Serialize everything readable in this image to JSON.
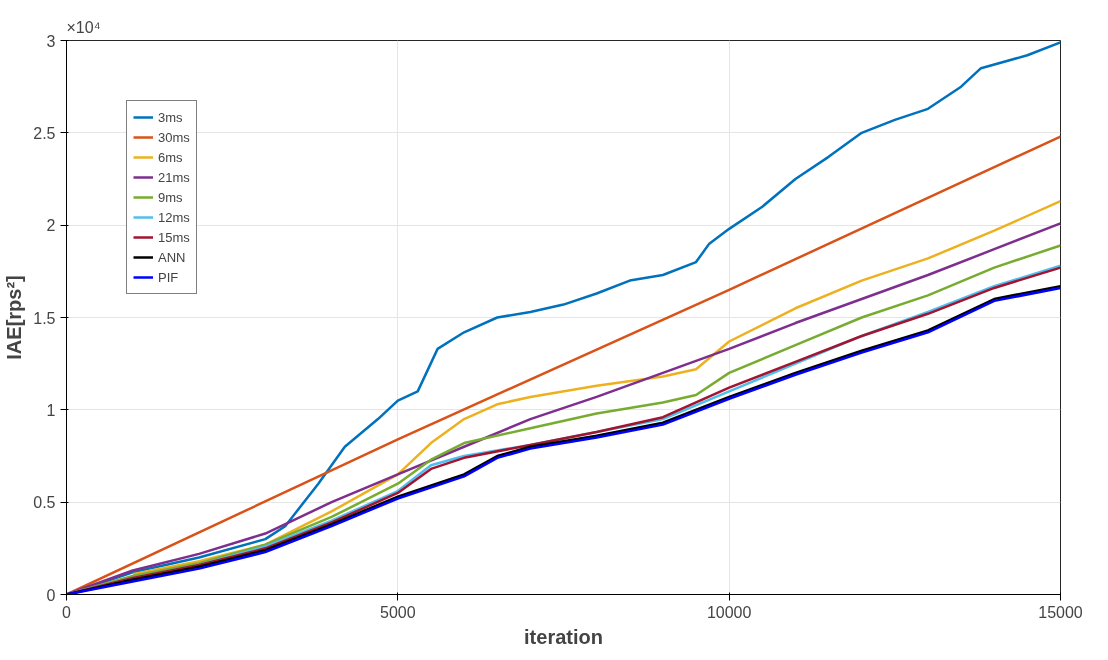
{
  "chart_data": {
    "type": "line",
    "xlabel": "iteration",
    "ylabel": "IAE[rps²]",
    "annotations": [
      "×10⁴"
    ],
    "xlim": [
      0,
      15000
    ],
    "ylim": [
      0,
      3
    ],
    "xticks": [
      0,
      5000,
      10000,
      15000
    ],
    "yticks": [
      0,
      0.5,
      1,
      1.5,
      2,
      2.5,
      3
    ],
    "grid": true,
    "legend": "top left",
    "series": [
      {
        "name": "3ms",
        "color": "#0072bd",
        "x": [
          0,
          1000,
          2000,
          3000,
          3300,
          3800,
          4200,
          4700,
          5000,
          5300,
          5600,
          6000,
          6500,
          7000,
          7500,
          8000,
          8500,
          9000,
          9500,
          9700,
          10000,
          10500,
          11000,
          11500,
          12000,
          12500,
          13000,
          13500,
          13800,
          14500,
          15000
        ],
        "values": [
          0,
          0.12,
          0.2,
          0.3,
          0.37,
          0.6,
          0.8,
          0.95,
          1.05,
          1.1,
          1.33,
          1.42,
          1.5,
          1.53,
          1.57,
          1.63,
          1.7,
          1.73,
          1.8,
          1.9,
          1.98,
          2.1,
          2.25,
          2.37,
          2.5,
          2.57,
          2.63,
          2.75,
          2.85,
          2.92,
          2.99
        ]
      },
      {
        "name": "30ms",
        "color": "#d95319",
        "x": [
          0,
          5000,
          10000,
          15000
        ],
        "values": [
          0,
          0.84,
          1.65,
          2.48
        ]
      },
      {
        "name": "6ms",
        "color": "#edb120",
        "x": [
          1000,
          2000,
          3000,
          4000,
          5000,
          5500,
          6000,
          6500,
          7000,
          8000,
          9000,
          9500,
          10000,
          11000,
          12000,
          13000,
          14000,
          15000
        ],
        "values": [
          0.11,
          0.18,
          0.27,
          0.45,
          0.65,
          0.82,
          0.95,
          1.03,
          1.07,
          1.13,
          1.18,
          1.22,
          1.37,
          1.55,
          1.7,
          1.82,
          1.97,
          2.13
        ]
      },
      {
        "name": "21ms",
        "color": "#7e2f8e",
        "x": [
          0,
          1000,
          2000,
          3000,
          4000,
          5000,
          6000,
          7000,
          8000,
          9000,
          10000,
          11000,
          12000,
          13000,
          14000,
          15000
        ],
        "values": [
          0,
          0.13,
          0.22,
          0.33,
          0.5,
          0.65,
          0.8,
          0.95,
          1.07,
          1.2,
          1.33,
          1.47,
          1.6,
          1.73,
          1.87,
          2.01
        ]
      },
      {
        "name": "9ms",
        "color": "#77ac30",
        "x": [
          0,
          1000,
          2000,
          3000,
          4000,
          5000,
          5500,
          6000,
          7000,
          8000,
          9000,
          9500,
          10000,
          11000,
          12000,
          13000,
          14000,
          15000
        ],
        "values": [
          0,
          0.1,
          0.17,
          0.27,
          0.42,
          0.6,
          0.73,
          0.82,
          0.9,
          0.98,
          1.04,
          1.08,
          1.2,
          1.35,
          1.5,
          1.62,
          1.77,
          1.89
        ]
      },
      {
        "name": "12ms",
        "color": "#4dbeee",
        "x": [
          0,
          1000,
          2000,
          3000,
          4000,
          5000,
          5500,
          6000,
          7000,
          8000,
          9000,
          10000,
          11000,
          12000,
          13000,
          14000,
          15000
        ],
        "values": [
          0,
          0.09,
          0.16,
          0.26,
          0.4,
          0.56,
          0.7,
          0.75,
          0.81,
          0.88,
          0.95,
          1.1,
          1.25,
          1.4,
          1.53,
          1.67,
          1.78
        ]
      },
      {
        "name": "15ms",
        "color": "#a2142f",
        "x": [
          0,
          1000,
          2000,
          3000,
          4000,
          5000,
          5500,
          6000,
          7000,
          8000,
          9000,
          10000,
          11000,
          12000,
          13000,
          14000,
          15000
        ],
        "values": [
          0,
          0.09,
          0.16,
          0.25,
          0.39,
          0.55,
          0.68,
          0.74,
          0.81,
          0.88,
          0.96,
          1.12,
          1.26,
          1.4,
          1.52,
          1.66,
          1.77
        ]
      },
      {
        "name": "ANN",
        "color": "#000000",
        "x": [
          0,
          1000,
          2000,
          3000,
          4000,
          5000,
          6000,
          6500,
          7000,
          8000,
          9000,
          10000,
          11000,
          12000,
          13000,
          14000,
          15000
        ],
        "values": [
          0,
          0.08,
          0.15,
          0.24,
          0.38,
          0.53,
          0.65,
          0.75,
          0.8,
          0.86,
          0.93,
          1.07,
          1.2,
          1.32,
          1.43,
          1.6,
          1.67
        ]
      },
      {
        "name": "PIF",
        "color": "#0000ff",
        "x": [
          0,
          1000,
          2000,
          3000,
          4000,
          5000,
          6000,
          6500,
          7000,
          8000,
          9000,
          10000,
          11000,
          12000,
          13000,
          14000,
          15000
        ],
        "values": [
          0,
          0.07,
          0.14,
          0.23,
          0.37,
          0.52,
          0.64,
          0.74,
          0.79,
          0.85,
          0.92,
          1.06,
          1.19,
          1.31,
          1.42,
          1.59,
          1.66
        ]
      }
    ]
  }
}
